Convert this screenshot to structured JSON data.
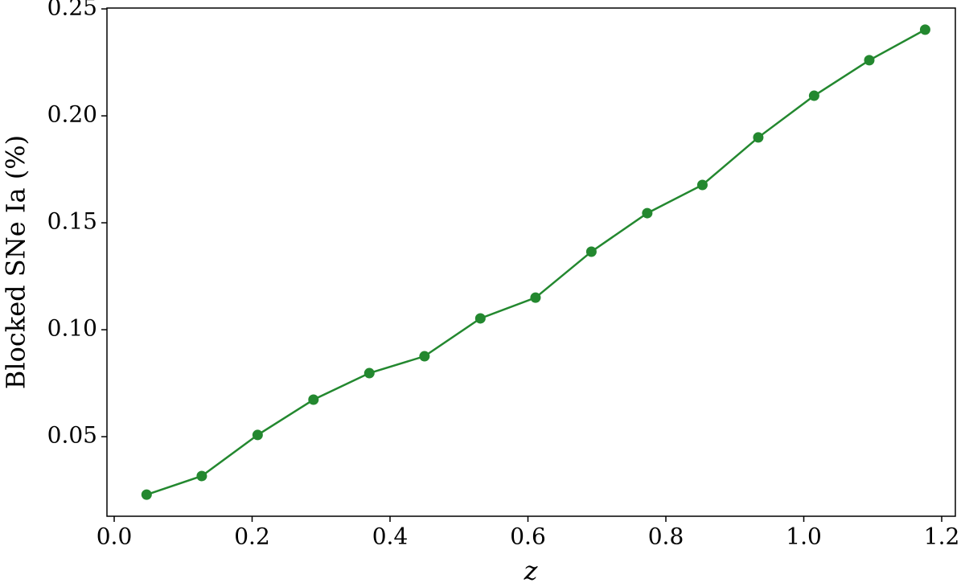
{
  "chart_data": {
    "type": "line",
    "x_label": "z",
    "y_label": "Blocked SNe Ia (%)",
    "x": [
      0.047,
      0.127,
      0.208,
      0.289,
      0.37,
      0.45,
      0.531,
      0.611,
      0.692,
      0.773,
      0.853,
      0.934,
      1.015,
      1.095,
      1.176
    ],
    "series": [
      {
        "name": "Blocked SNe Ia",
        "color": "#23882f",
        "values": [
          0.0229,
          0.0316,
          0.0508,
          0.0673,
          0.0797,
          0.0876,
          0.1053,
          0.115,
          0.1365,
          0.1545,
          0.1677,
          0.1899,
          0.2094,
          0.226,
          0.2403
        ]
      }
    ],
    "xlim": [
      -0.0105,
      1.2198
    ],
    "ylim": [
      0.0128,
      0.2504
    ],
    "xticks": [
      {
        "value": 0,
        "label": "0.0"
      },
      0.2,
      0.4,
      0.6,
      0.8,
      {
        "value": 1,
        "label": "1.0"
      },
      1.2
    ],
    "yticks": [
      0.05,
      {
        "value": 0.1,
        "label": "0.10"
      },
      0.15,
      {
        "value": 0.2,
        "label": "0.20"
      },
      0.25
    ],
    "grid": false
  }
}
